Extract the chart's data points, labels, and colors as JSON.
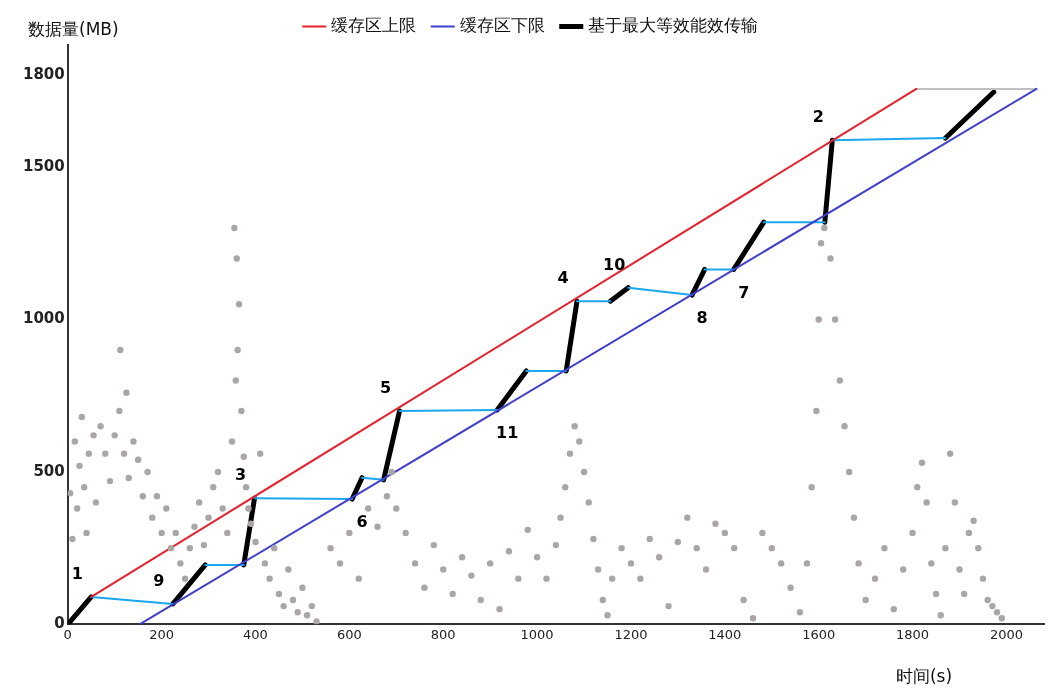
{
  "chart_data": {
    "type": "line",
    "xlabel": "时间(s)",
    "ylabel": "数据量(MB)",
    "xlim": [
      0,
      2080
    ],
    "xticks": [
      0,
      200,
      400,
      600,
      800,
      1000,
      1200,
      1400,
      1600,
      1800,
      2000
    ],
    "ylim": [
      0,
      1900
    ],
    "yticks": [
      0,
      500,
      1000,
      1500,
      1800
    ],
    "grid": false,
    "legend": "top",
    "series": [
      {
        "type": "scatter",
        "marker": "circle",
        "color": "#aaa6a6",
        "x": [
          5,
          10,
          15,
          20,
          25,
          30,
          35,
          40,
          45,
          55,
          60,
          70,
          80,
          90,
          100,
          112,
          110,
          120,
          125,
          130,
          140,
          150,
          160,
          170,
          180,
          190,
          200,
          210,
          220,
          230,
          240,
          250,
          260,
          270,
          280,
          290,
          300,
          310,
          320,
          330,
          340,
          355,
          360,
          365,
          362,
          358,
          370,
          350,
          375,
          380,
          385,
          390,
          400,
          410,
          420,
          430,
          440,
          450,
          460,
          470,
          480,
          490,
          500,
          510,
          520,
          530,
          560,
          580,
          600,
          620,
          640,
          660,
          680,
          690,
          700,
          720,
          740,
          760,
          780,
          800,
          820,
          840,
          860,
          880,
          900,
          920,
          940,
          960,
          980,
          1000,
          1020,
          1040,
          1050,
          1060,
          1070,
          1080,
          1090,
          1100,
          1110,
          1120,
          1130,
          1140,
          1150,
          1160,
          1180,
          1200,
          1220,
          1240,
          1260,
          1280,
          1300,
          1320,
          1340,
          1360,
          1380,
          1400,
          1420,
          1440,
          1460,
          1480,
          1500,
          1520,
          1540,
          1560,
          1575,
          1585,
          1595,
          1600,
          1605,
          1612,
          1625,
          1635,
          1645,
          1655,
          1665,
          1675,
          1685,
          1700,
          1720,
          1740,
          1760,
          1780,
          1800,
          1810,
          1820,
          1830,
          1840,
          1850,
          1860,
          1870,
          1880,
          1890,
          1900,
          1910,
          1920,
          1930,
          1940,
          1950,
          1960,
          1970,
          1980,
          1990
        ],
        "values": [
          430,
          280,
          600,
          380,
          520,
          680,
          450,
          300,
          560,
          620,
          400,
          650,
          560,
          470,
          620,
          900,
          700,
          560,
          760,
          480,
          600,
          540,
          420,
          500,
          350,
          420,
          300,
          380,
          250,
          300,
          200,
          150,
          250,
          320,
          400,
          260,
          350,
          450,
          500,
          380,
          300,
          1300,
          1200,
          1050,
          900,
          800,
          700,
          600,
          550,
          450,
          380,
          330,
          270,
          560,
          200,
          150,
          250,
          100,
          60,
          180,
          80,
          40,
          120,
          30,
          60,
          10,
          250,
          200,
          300,
          150,
          380,
          320,
          420,
          500,
          380,
          300,
          200,
          120,
          260,
          180,
          100,
          220,
          160,
          80,
          200,
          50,
          240,
          150,
          310,
          220,
          150,
          260,
          350,
          450,
          560,
          650,
          600,
          500,
          400,
          280,
          180,
          80,
          30,
          150,
          250,
          200,
          150,
          280,
          220,
          60,
          270,
          350,
          250,
          180,
          330,
          300,
          250,
          80,
          20,
          300,
          250,
          200,
          120,
          40,
          200,
          450,
          700,
          1000,
          1250,
          1300,
          1200,
          1000,
          800,
          650,
          500,
          350,
          200,
          80,
          150,
          250,
          50,
          180,
          300,
          450,
          530,
          400,
          200,
          100,
          30,
          250,
          560,
          400,
          180,
          100,
          300,
          340,
          250,
          150,
          80,
          60,
          40,
          20
        ]
      },
      {
        "type": "line",
        "name": "缓存区上限",
        "color": "#e8202a",
        "x": [
          50,
          1808
        ],
        "values": [
          90,
          1756
        ]
      },
      {
        "type": "line",
        "name": "缓存区下限",
        "color": "#3f3fcf",
        "x": [
          153,
          2064
        ],
        "values": [
          0,
          1756
        ]
      },
      {
        "type": "line",
        "color": "#c0c0c0",
        "x": [
          1808,
          2064
        ],
        "values": [
          1756,
          1756
        ]
      },
      {
        "type": "line",
        "color": "#1aa7ec",
        "x": [
          50,
          224,
          null,
          293,
          375,
          null,
          398,
          606,
          null,
          627,
          673,
          null,
          707,
          915,
          null,
          977,
          1062,
          null,
          1085,
          1156,
          null,
          1194,
          1330,
          null,
          1357,
          1419,
          null,
          1483,
          1613,
          null,
          1629,
          1870
        ],
        "values": [
          90,
          67,
          null,
          195,
          195,
          null,
          414,
          411,
          null,
          481,
          474,
          null,
          700,
          703,
          null,
          831,
          831,
          null,
          1060,
          1060,
          null,
          1104,
          1080,
          null,
          1164,
          1164,
          null,
          1319,
          1319,
          null,
          1588,
          1595
        ]
      },
      {
        "type": "line",
        "name": "基于最大等效能效传输",
        "color": "#000000",
        "x": [
          0,
          50,
          null,
          224,
          293,
          null,
          375,
          398,
          null,
          606,
          627,
          null,
          673,
          707,
          null,
          915,
          977,
          null,
          1062,
          1085,
          null,
          1156,
          1194,
          null,
          1330,
          1357,
          null,
          1419,
          1483,
          null,
          1613,
          1629,
          null,
          1870,
          1973
        ],
        "values": [
          0,
          90,
          null,
          67,
          195,
          null,
          195,
          414,
          null,
          411,
          481,
          null,
          474,
          700,
          null,
          703,
          831,
          null,
          831,
          1060,
          null,
          1060,
          1104,
          null,
          1080,
          1164,
          null,
          1164,
          1319,
          null,
          1319,
          1588,
          null,
          1595,
          1746
        ]
      }
    ],
    "annotations": [
      {
        "text": "1",
        "x": 50,
        "y": 90
      },
      {
        "text": "9",
        "x": 224,
        "y": 67
      },
      {
        "text": "3",
        "x": 398,
        "y": 414
      },
      {
        "text": "6",
        "x": 606,
        "y": 411
      },
      {
        "text": "5",
        "x": 707,
        "y": 700
      },
      {
        "text": "11",
        "x": 915,
        "y": 703
      },
      {
        "text": "4",
        "x": 1085,
        "y": 1060
      },
      {
        "text": "10",
        "x": 1194,
        "y": 1104
      },
      {
        "text": "8",
        "x": 1330,
        "y": 1080
      },
      {
        "text": "7",
        "x": 1419,
        "y": 1164
      },
      {
        "text": "2",
        "x": 1629,
        "y": 1588
      }
    ]
  }
}
